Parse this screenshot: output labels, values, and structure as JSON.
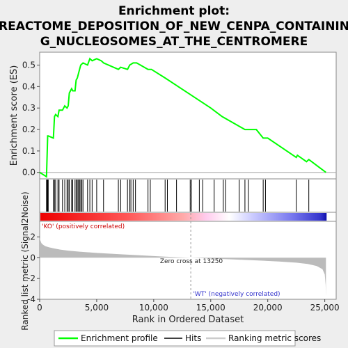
{
  "chart_data": {
    "type": "line",
    "title_lines": [
      "Enrichment plot:",
      "REACTOME_DEPOSITION_OF_NEW_CENPA_CONTAININ",
      "G_NUCLEOSOMES_AT_THE_CENTROMERE"
    ],
    "es_panel": {
      "ylabel": "Enrichment score (ES)",
      "ylim": [
        -0.03,
        0.56
      ],
      "yticks": [
        0.0,
        0.1,
        0.2,
        0.3,
        0.4,
        0.5
      ],
      "ytick_labels": [
        "0.0",
        "0.1",
        "0.2",
        "0.3",
        "0.4",
        "0.5"
      ],
      "series": [
        {
          "name": "Enrichment profile",
          "color": "#00ff00",
          "x": [
            0,
            600,
            650,
            700,
            750,
            1200,
            1300,
            1400,
            1600,
            1700,
            2000,
            2200,
            2400,
            2500,
            2600,
            2800,
            2900,
            3100,
            3200,
            3300,
            3500,
            3600,
            3800,
            4200,
            4400,
            4600,
            5000,
            5400,
            5600,
            6900,
            7100,
            7700,
            7900,
            8200,
            8500,
            9500,
            9800,
            11000,
            13000,
            15000,
            16000,
            18000,
            19000,
            19600,
            20000,
            22500,
            22600,
            23400,
            23600,
            25100
          ],
          "y": [
            0.0,
            -0.02,
            0.08,
            0.17,
            0.17,
            0.16,
            0.26,
            0.27,
            0.26,
            0.29,
            0.29,
            0.31,
            0.3,
            0.31,
            0.37,
            0.39,
            0.38,
            0.38,
            0.43,
            0.44,
            0.48,
            0.5,
            0.51,
            0.5,
            0.53,
            0.52,
            0.53,
            0.52,
            0.51,
            0.48,
            0.49,
            0.48,
            0.5,
            0.51,
            0.51,
            0.48,
            0.48,
            0.44,
            0.37,
            0.3,
            0.26,
            0.2,
            0.2,
            0.16,
            0.16,
            0.07,
            0.08,
            0.05,
            0.06,
            0.0
          ]
        }
      ]
    },
    "hits": {
      "name": "Hits",
      "x": [
        600,
        650,
        700,
        750,
        1200,
        1300,
        1400,
        1600,
        1700,
        2000,
        2200,
        2400,
        2500,
        2600,
        2800,
        2900,
        3100,
        3200,
        3300,
        3400,
        3500,
        3600,
        3700,
        3800,
        4200,
        4400,
        4600,
        5000,
        5600,
        6900,
        7100,
        7700,
        7900,
        8000,
        8200,
        8400,
        9500,
        9700,
        11000,
        11200,
        12000,
        13200,
        13300,
        14000,
        14300,
        15300,
        16100,
        16300,
        17500,
        18000,
        18300,
        19600,
        19800,
        22500,
        23600
      ]
    },
    "ranking_panel": {
      "xlabel": "Rank in Ordered Dataset",
      "ylabel": "Ranked list metric (Signal2Noise)",
      "xlim": [
        0,
        26000
      ],
      "ylim": [
        -4,
        3.5
      ],
      "xticks": [
        0,
        5000,
        10000,
        15000,
        20000,
        25000
      ],
      "xtick_labels": [
        "0",
        "5,000",
        "10,000",
        "15,000",
        "20,000",
        "25,000"
      ],
      "yticks": [
        -4,
        -2,
        0,
        2
      ],
      "ytick_labels": [
        "-4",
        "-2",
        "0",
        "2"
      ],
      "series": [
        {
          "name": "Ranking metric scores",
          "color": "#bbbbbb",
          "x": [
            0,
            50,
            150,
            300,
            500,
            800,
            1200,
            1800,
            2500,
            3500,
            5000,
            7000,
            9000,
            11000,
            13250,
            15000,
            17000,
            19000,
            21000,
            22500,
            23500,
            24300,
            24800,
            25000,
            25080,
            25100
          ],
          "y": [
            1.9,
            1.7,
            1.4,
            1.25,
            1.1,
            1.0,
            0.9,
            0.78,
            0.68,
            0.58,
            0.46,
            0.34,
            0.22,
            0.1,
            0.0,
            -0.08,
            -0.17,
            -0.26,
            -0.37,
            -0.48,
            -0.6,
            -0.8,
            -1.1,
            -1.6,
            -2.6,
            -3.7
          ]
        }
      ],
      "zero_cross_label": "Zero cross at 13250",
      "zero_cross": 13250,
      "pos_label": "'KO' (positively correlated)",
      "neg_label": "'WT' (negatively correlated)",
      "pos_color": "#cc0000",
      "neg_color": "#3333cc"
    },
    "legend": {
      "items": [
        {
          "label": "Enrichment profile",
          "color": "#00ff00"
        },
        {
          "label": "Hits",
          "color": "#000000"
        },
        {
          "label": "Ranking metric scores",
          "color": "#cccccc"
        }
      ]
    }
  }
}
